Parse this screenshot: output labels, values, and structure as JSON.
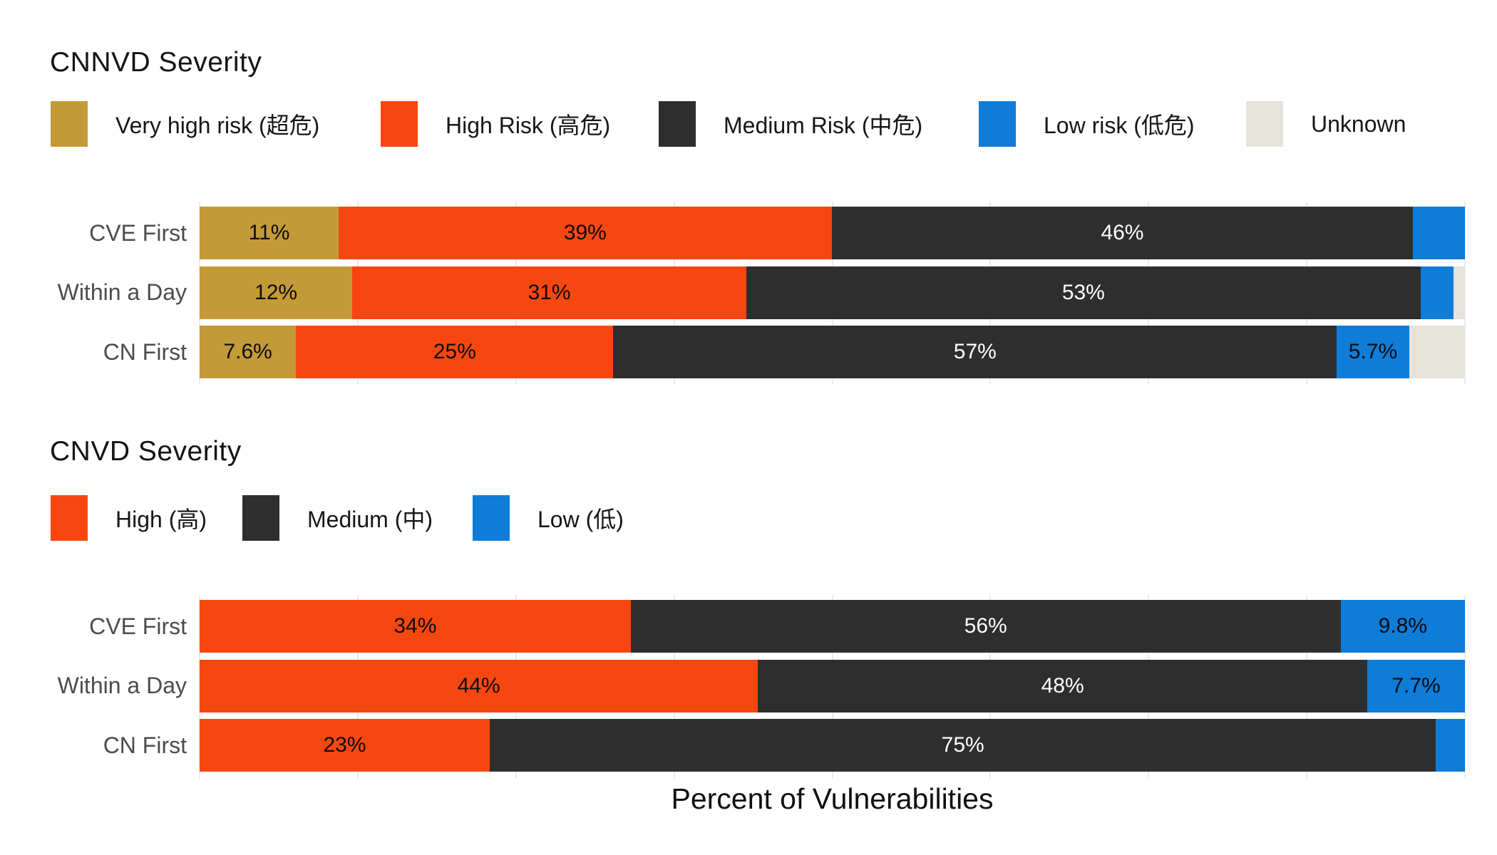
{
  "xlabel": "Percent of Vulnerabilities",
  "colors": {
    "very_high_risk": "#c49a38",
    "high_risk": "#f74711",
    "medium_risk": "#2e2e2e",
    "low_risk": "#0f7cd8",
    "unknown": "#e6e3da",
    "gridline": "#ebebeb"
  },
  "chart_data": [
    {
      "type": "bar",
      "subtype": "horizontal-stacked-percent",
      "title": "CNNVD Severity",
      "categories": [
        "CVE First",
        "Within a Day",
        "CN First"
      ],
      "xlim": [
        0,
        100
      ],
      "grid": "on",
      "legend_position": "top",
      "series": [
        {
          "name": "Very high risk (超危)",
          "color": "#c49a38",
          "label_color": "#0c0c0c",
          "values": [
            11,
            12,
            7.6
          ],
          "labels": [
            "11%",
            "12%",
            "7.6%"
          ]
        },
        {
          "name": "High Risk (高危)",
          "color": "#f74711",
          "label_color": "#0c0c0c",
          "values": [
            39,
            31,
            25
          ],
          "labels": [
            "39%",
            "31%",
            "25%"
          ]
        },
        {
          "name": "Medium Risk (中危)",
          "color": "#2e2e2e",
          "label_color": "#ffffff",
          "values": [
            46,
            53,
            57
          ],
          "labels": [
            "46%",
            "53%",
            "57%"
          ]
        },
        {
          "name": "Low risk (低危)",
          "color": "#0f7cd8",
          "label_color": "#0c0c0c",
          "values": [
            4.1,
            2.6,
            5.7
          ],
          "labels": [
            "",
            "",
            "5.7%"
          ]
        },
        {
          "name": "Unknown",
          "color": "#e6e3da",
          "label_color": "#0c0c0c",
          "values": [
            0,
            0.9,
            4.4
          ],
          "labels": [
            "",
            "",
            ""
          ]
        }
      ]
    },
    {
      "type": "bar",
      "subtype": "horizontal-stacked-percent",
      "title": "CNVD Severity",
      "categories": [
        "CVE First",
        "Within a Day",
        "CN First"
      ],
      "xlim": [
        0,
        100
      ],
      "grid": "on",
      "legend_position": "top",
      "series": [
        {
          "name": "High (高)",
          "color": "#f74711",
          "label_color": "#0c0c0c",
          "values": [
            34,
            44,
            23
          ],
          "labels": [
            "34%",
            "44%",
            "23%"
          ]
        },
        {
          "name": "Medium (中)",
          "color": "#2e2e2e",
          "label_color": "#ffffff",
          "values": [
            56,
            48,
            75
          ],
          "labels": [
            "56%",
            "48%",
            "75%"
          ]
        },
        {
          "name": "Low (低)",
          "color": "#0f7cd8",
          "label_color": "#0c0c0c",
          "values": [
            9.8,
            7.7,
            2.3
          ],
          "labels": [
            "9.8%",
            "7.7%",
            ""
          ]
        }
      ]
    }
  ]
}
